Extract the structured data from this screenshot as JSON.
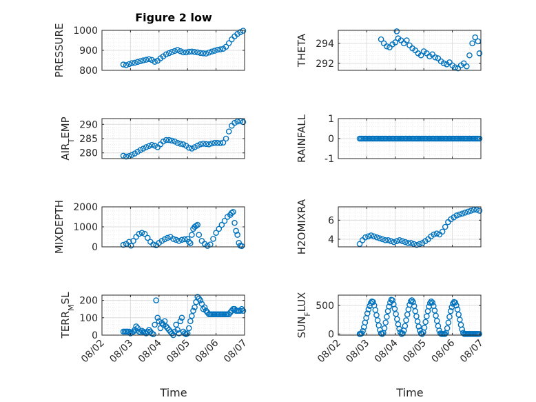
{
  "figure": {
    "title": "Figure 2 low",
    "xlabel": "Time"
  },
  "colors": {
    "marker": "#0072bd",
    "axis": "#262626",
    "grid": "#dcdcdc",
    "minor_grid": "#e8e8e8"
  },
  "chart_data": [
    {
      "type": "scatter",
      "ylabel": "PRESSURE",
      "ylabel_parts": [
        {
          "t": "PRESSURE"
        }
      ],
      "ylim": [
        800,
        1000
      ],
      "yticks": [
        800,
        900,
        1000
      ],
      "ytick_labels": [
        "800",
        "900",
        "1000"
      ],
      "xlim": [
        0,
        5
      ],
      "xticks": [
        0,
        1,
        2,
        3,
        4,
        5
      ],
      "xtick_labels": [
        "08/02",
        "08/03",
        "08/04",
        "08/05",
        "08/06",
        "08/07"
      ],
      "grid": true,
      "minor_grid": true,
      "marker": "circle",
      "x": [
        0.75,
        0.85,
        0.95,
        1.05,
        1.15,
        1.25,
        1.35,
        1.45,
        1.55,
        1.65,
        1.75,
        1.85,
        1.95,
        2.05,
        2.15,
        2.25,
        2.35,
        2.45,
        2.55,
        2.65,
        2.75,
        2.85,
        2.95,
        3.05,
        3.15,
        3.25,
        3.35,
        3.45,
        3.55,
        3.65,
        3.75,
        3.85,
        3.95,
        4.05,
        4.15,
        4.25,
        4.35,
        4.45,
        4.55,
        4.65,
        4.75,
        4.85,
        4.95
      ],
      "y": [
        829,
        826,
        831,
        836,
        838,
        842,
        846,
        850,
        853,
        856,
        852,
        843,
        848,
        860,
        870,
        880,
        886,
        892,
        897,
        902,
        896,
        890,
        890,
        893,
        894,
        892,
        890,
        887,
        885,
        884,
        889,
        894,
        898,
        903,
        905,
        908,
        918,
        936,
        955,
        970,
        982,
        991,
        998
      ]
    },
    {
      "type": "scatter",
      "ylabel": "THETA",
      "ylabel_parts": [
        {
          "t": "THETA"
        }
      ],
      "ylim": [
        291.3,
        295.3
      ],
      "yticks": [
        292,
        294
      ],
      "ytick_labels": [
        "292",
        "294"
      ],
      "xlim": [
        0,
        5
      ],
      "xticks": [
        0,
        1,
        2,
        3,
        4,
        5
      ],
      "xtick_labels": [
        "08/02",
        "08/03",
        "08/04",
        "08/05",
        "08/06",
        "08/07"
      ],
      "grid": true,
      "minor_grid": true,
      "marker": "circle",
      "x": [
        1.5,
        1.6,
        1.7,
        1.8,
        1.9,
        2.0,
        2.05,
        2.1,
        2.2,
        2.3,
        2.4,
        2.5,
        2.6,
        2.7,
        2.8,
        2.9,
        3.0,
        3.1,
        3.2,
        3.3,
        3.4,
        3.5,
        3.6,
        3.7,
        3.8,
        3.9,
        4.0,
        4.1,
        4.2,
        4.3,
        4.4,
        4.5,
        4.6,
        4.7,
        4.8,
        4.9,
        4.95
      ],
      "y": [
        294.4,
        294.0,
        293.7,
        293.6,
        293.9,
        294.1,
        295.2,
        294.5,
        294.3,
        294.0,
        294.3,
        293.8,
        293.5,
        293.3,
        293.0,
        292.8,
        293.2,
        293.0,
        292.7,
        292.9,
        292.6,
        292.5,
        292.2,
        292.0,
        291.9,
        292.1,
        291.8,
        291.6,
        291.5,
        291.8,
        292.0,
        291.7,
        292.8,
        294.0,
        294.6,
        294.2,
        293.0
      ]
    },
    {
      "type": "scatter",
      "ylabel": "AIR_TEMP",
      "ylabel_parts": [
        {
          "t": "AIR"
        },
        {
          "t": "T",
          "sub": true
        },
        {
          "t": "EMP"
        }
      ],
      "ylim": [
        278,
        292
      ],
      "yticks": [
        280,
        285,
        290
      ],
      "ytick_labels": [
        "280",
        "285",
        "290"
      ],
      "xlim": [
        0,
        5
      ],
      "xticks": [
        0,
        1,
        2,
        3,
        4,
        5
      ],
      "xtick_labels": [
        "08/02",
        "08/03",
        "08/04",
        "08/05",
        "08/06",
        "08/07"
      ],
      "grid": true,
      "minor_grid": true,
      "marker": "circle",
      "x": [
        0.75,
        0.85,
        0.95,
        1.05,
        1.15,
        1.25,
        1.35,
        1.45,
        1.55,
        1.65,
        1.75,
        1.85,
        1.95,
        2.05,
        2.15,
        2.25,
        2.35,
        2.45,
        2.55,
        2.65,
        2.75,
        2.85,
        2.95,
        3.05,
        3.15,
        3.25,
        3.35,
        3.45,
        3.55,
        3.65,
        3.75,
        3.85,
        3.95,
        4.05,
        4.15,
        4.25,
        4.35,
        4.45,
        4.55,
        4.65,
        4.75,
        4.85,
        4.95
      ],
      "y": [
        279.0,
        278.7,
        278.9,
        279.3,
        279.8,
        280.4,
        281.0,
        281.5,
        282.0,
        282.4,
        282.8,
        282.5,
        282.0,
        283.0,
        284.0,
        284.5,
        284.5,
        284.3,
        284.0,
        283.5,
        283.2,
        283.0,
        282.5,
        281.8,
        281.5,
        282.0,
        282.5,
        283.0,
        283.2,
        283.1,
        283.0,
        283.3,
        283.5,
        283.5,
        283.4,
        283.6,
        285.0,
        287.5,
        289.5,
        290.5,
        291.0,
        291.2,
        290.8
      ]
    },
    {
      "type": "scatter",
      "ylabel": "RAINFALL",
      "ylabel_parts": [
        {
          "t": "RAINFALL"
        }
      ],
      "ylim": [
        -1,
        1
      ],
      "yticks": [
        -1,
        0,
        1
      ],
      "ytick_labels": [
        "-1",
        "0",
        "1"
      ],
      "xlim": [
        0,
        5
      ],
      "xticks": [
        0,
        1,
        2,
        3,
        4,
        5
      ],
      "xtick_labels": [
        "08/02",
        "08/03",
        "08/04",
        "08/05",
        "08/06",
        "08/07"
      ],
      "grid": true,
      "minor_grid": true,
      "marker": "circle",
      "x_range": [
        0.75,
        4.97
      ],
      "x_step": 0.05,
      "constant_y": 0
    },
    {
      "type": "scatter",
      "ylabel": "MIXDEPTH",
      "ylabel_parts": [
        {
          "t": "MIXDEPTH"
        }
      ],
      "ylim": [
        0,
        2000
      ],
      "yticks": [
        0,
        1000,
        2000
      ],
      "ytick_labels": [
        "0",
        "1000",
        "2000"
      ],
      "xlim": [
        0,
        5
      ],
      "xticks": [
        0,
        1,
        2,
        3,
        4,
        5
      ],
      "xtick_labels": [
        "08/02",
        "08/03",
        "08/04",
        "08/05",
        "08/06",
        "08/07"
      ],
      "grid": true,
      "minor_grid": true,
      "marker": "circle",
      "x": [
        0.75,
        0.85,
        0.95,
        1.02,
        1.1,
        1.2,
        1.3,
        1.4,
        1.5,
        1.6,
        1.7,
        1.8,
        1.9,
        2.0,
        2.1,
        2.2,
        2.3,
        2.4,
        2.5,
        2.6,
        2.7,
        2.8,
        2.9,
        3.0,
        3.05,
        3.1,
        3.15,
        3.2,
        3.25,
        3.3,
        3.35,
        3.4,
        3.5,
        3.6,
        3.7,
        3.8,
        3.9,
        4.0,
        4.1,
        4.2,
        4.3,
        4.4,
        4.5,
        4.55,
        4.6,
        4.65,
        4.7,
        4.75,
        4.8,
        4.85,
        4.9
      ],
      "y": [
        100,
        150,
        250,
        60,
        300,
        500,
        650,
        700,
        650,
        450,
        250,
        120,
        80,
        200,
        300,
        380,
        450,
        500,
        400,
        350,
        300,
        350,
        380,
        400,
        250,
        180,
        600,
        900,
        1000,
        1050,
        1100,
        600,
        300,
        150,
        50,
        120,
        400,
        700,
        900,
        1100,
        1300,
        1500,
        1600,
        1700,
        1750,
        1200,
        800,
        600,
        200,
        60,
        40
      ]
    },
    {
      "type": "scatter",
      "ylabel": "H2OMIXRA",
      "ylabel_parts": [
        {
          "t": "H2OMIXRA"
        }
      ],
      "ylim": [
        3.2,
        7.4
      ],
      "yticks": [
        4,
        6
      ],
      "ytick_labels": [
        "4",
        "6"
      ],
      "xlim": [
        0,
        5
      ],
      "xticks": [
        0,
        1,
        2,
        3,
        4,
        5
      ],
      "xtick_labels": [
        "08/02",
        "08/03",
        "08/04",
        "08/05",
        "08/06",
        "08/07"
      ],
      "grid": true,
      "minor_grid": true,
      "marker": "circle",
      "x": [
        0.75,
        0.85,
        0.95,
        1.05,
        1.15,
        1.25,
        1.35,
        1.45,
        1.55,
        1.65,
        1.75,
        1.85,
        1.95,
        2.05,
        2.15,
        2.25,
        2.35,
        2.45,
        2.55,
        2.65,
        2.75,
        2.85,
        2.95,
        3.05,
        3.15,
        3.25,
        3.35,
        3.45,
        3.55,
        3.65,
        3.75,
        3.85,
        3.95,
        4.05,
        4.15,
        4.25,
        4.35,
        4.45,
        4.55,
        4.65,
        4.75,
        4.85,
        4.95
      ],
      "y": [
        3.5,
        3.9,
        4.2,
        4.3,
        4.4,
        4.3,
        4.2,
        4.1,
        4.0,
        3.9,
        3.9,
        3.8,
        3.7,
        3.8,
        3.9,
        3.8,
        3.7,
        3.6,
        3.6,
        3.5,
        3.4,
        3.5,
        3.6,
        3.8,
        4.0,
        4.3,
        4.5,
        4.6,
        4.5,
        4.8,
        5.3,
        5.8,
        6.1,
        6.3,
        6.5,
        6.6,
        6.7,
        6.8,
        6.9,
        7.0,
        7.1,
        7.1,
        7.0
      ]
    },
    {
      "type": "scatter",
      "ylabel": "TERR_MSL",
      "ylabel_parts": [
        {
          "t": "TERR"
        },
        {
          "t": "M",
          "sub": true
        },
        {
          "t": "SL"
        }
      ],
      "ylim": [
        0,
        230
      ],
      "yticks": [
        0,
        100,
        200
      ],
      "ytick_labels": [
        "0",
        "100",
        "200"
      ],
      "xlim": [
        0,
        5
      ],
      "xticks": [
        0,
        1,
        2,
        3,
        4,
        5
      ],
      "xtick_labels": [
        "08/02",
        "08/03",
        "08/04",
        "08/05",
        "08/06",
        "08/07"
      ],
      "grid": true,
      "minor_grid": true,
      "marker": "circle",
      "x": [
        0.75,
        0.8,
        0.85,
        0.9,
        0.95,
        1.0,
        1.05,
        1.1,
        1.15,
        1.2,
        1.25,
        1.3,
        1.35,
        1.4,
        1.45,
        1.5,
        1.55,
        1.6,
        1.65,
        1.7,
        1.75,
        1.8,
        1.85,
        1.9,
        1.95,
        2.0,
        2.05,
        2.1,
        2.15,
        2.2,
        2.25,
        2.3,
        2.35,
        2.4,
        2.45,
        2.5,
        2.55,
        2.6,
        2.65,
        2.7,
        2.75,
        2.8,
        2.85,
        2.9,
        2.95,
        3.0,
        3.05,
        3.1,
        3.15,
        3.2,
        3.25,
        3.3,
        3.35,
        3.4,
        3.45,
        3.5,
        3.55,
        3.6,
        3.65,
        3.7,
        3.75,
        3.8,
        3.85,
        3.9,
        3.95,
        4.0,
        4.05,
        4.1,
        4.15,
        4.2,
        4.25,
        4.3,
        4.35,
        4.4,
        4.45,
        4.5,
        4.55,
        4.6,
        4.65,
        4.7,
        4.75,
        4.8,
        4.85,
        4.9,
        4.95
      ],
      "y": [
        20,
        20,
        20,
        20,
        20,
        10,
        15,
        20,
        30,
        50,
        40,
        20,
        15,
        25,
        20,
        15,
        10,
        20,
        30,
        20,
        10,
        5,
        60,
        200,
        100,
        80,
        40,
        70,
        60,
        80,
        50,
        40,
        30,
        20,
        10,
        0,
        20,
        60,
        30,
        10,
        80,
        100,
        20,
        10,
        5,
        10,
        40,
        80,
        110,
        140,
        160,
        190,
        220,
        210,
        200,
        180,
        150,
        160,
        140,
        130,
        120,
        120,
        120,
        120,
        120,
        120,
        120,
        120,
        120,
        120,
        120,
        120,
        120,
        120,
        120,
        130,
        140,
        150,
        150,
        140,
        140,
        140,
        140,
        150,
        140
      ]
    },
    {
      "type": "scatter",
      "ylabel": "SUN_FLUX",
      "ylabel_parts": [
        {
          "t": "SUN"
        },
        {
          "t": "F",
          "sub": true
        },
        {
          "t": "LUX"
        }
      ],
      "ylim": [
        -20,
        680
      ],
      "yticks": [
        0,
        500
      ],
      "ytick_labels": [
        "0",
        "500"
      ],
      "xlim": [
        0,
        5
      ],
      "xticks": [
        0,
        1,
        2,
        3,
        4,
        5
      ],
      "xtick_labels": [
        "08/02",
        "08/03",
        "08/04",
        "08/05",
        "08/06",
        "08/07"
      ],
      "grid": true,
      "minor_grid": true,
      "marker": "circle",
      "x": [
        0.75,
        0.78,
        0.82,
        0.86,
        0.9,
        0.94,
        0.98,
        1.02,
        1.06,
        1.1,
        1.14,
        1.18,
        1.22,
        1.26,
        1.3,
        1.34,
        1.38,
        1.42,
        1.46,
        1.5,
        1.54,
        1.58,
        1.62,
        1.66,
        1.7,
        1.74,
        1.78,
        1.82,
        1.86,
        1.9,
        1.94,
        1.98,
        2.02,
        2.06,
        2.1,
        2.14,
        2.18,
        2.22,
        2.26,
        2.3,
        2.34,
        2.38,
        2.42,
        2.46,
        2.5,
        2.54,
        2.58,
        2.62,
        2.66,
        2.7,
        2.74,
        2.78,
        2.82,
        2.86,
        2.9,
        2.94,
        2.98,
        3.02,
        3.06,
        3.1,
        3.14,
        3.18,
        3.22,
        3.26,
        3.3,
        3.34,
        3.38,
        3.42,
        3.46,
        3.5,
        3.54,
        3.58,
        3.62,
        3.66,
        3.7,
        3.74,
        3.78,
        3.82,
        3.86,
        3.9,
        3.94,
        3.98,
        4.02,
        4.06,
        4.1,
        4.14,
        4.18,
        4.22,
        4.26,
        4.3,
        4.34,
        4.38,
        4.42,
        4.46,
        4.5,
        4.54,
        4.58,
        4.62,
        4.66,
        4.7,
        4.74,
        4.78,
        4.82,
        4.86,
        4.9,
        4.94
      ],
      "y": [
        0,
        0,
        10,
        50,
        120,
        200,
        280,
        360,
        430,
        490,
        540,
        570,
        560,
        500,
        420,
        330,
        240,
        150,
        70,
        10,
        0,
        20,
        100,
        200,
        300,
        400,
        480,
        550,
        600,
        590,
        520,
        440,
        350,
        260,
        170,
        90,
        30,
        0,
        10,
        60,
        140,
        240,
        340,
        430,
        510,
        570,
        590,
        560,
        490,
        400,
        310,
        220,
        130,
        60,
        10,
        0,
        30,
        110,
        210,
        310,
        400,
        480,
        540,
        570,
        550,
        490,
        410,
        320,
        230,
        140,
        60,
        10,
        0,
        0,
        0,
        0,
        20,
        100,
        200,
        300,
        400,
        470,
        530,
        560,
        550,
        500,
        430,
        340,
        250,
        160,
        80,
        20,
        0,
        0,
        0,
        0,
        0,
        0,
        0,
        0,
        0,
        0,
        0,
        0,
        0,
        0
      ]
    }
  ]
}
